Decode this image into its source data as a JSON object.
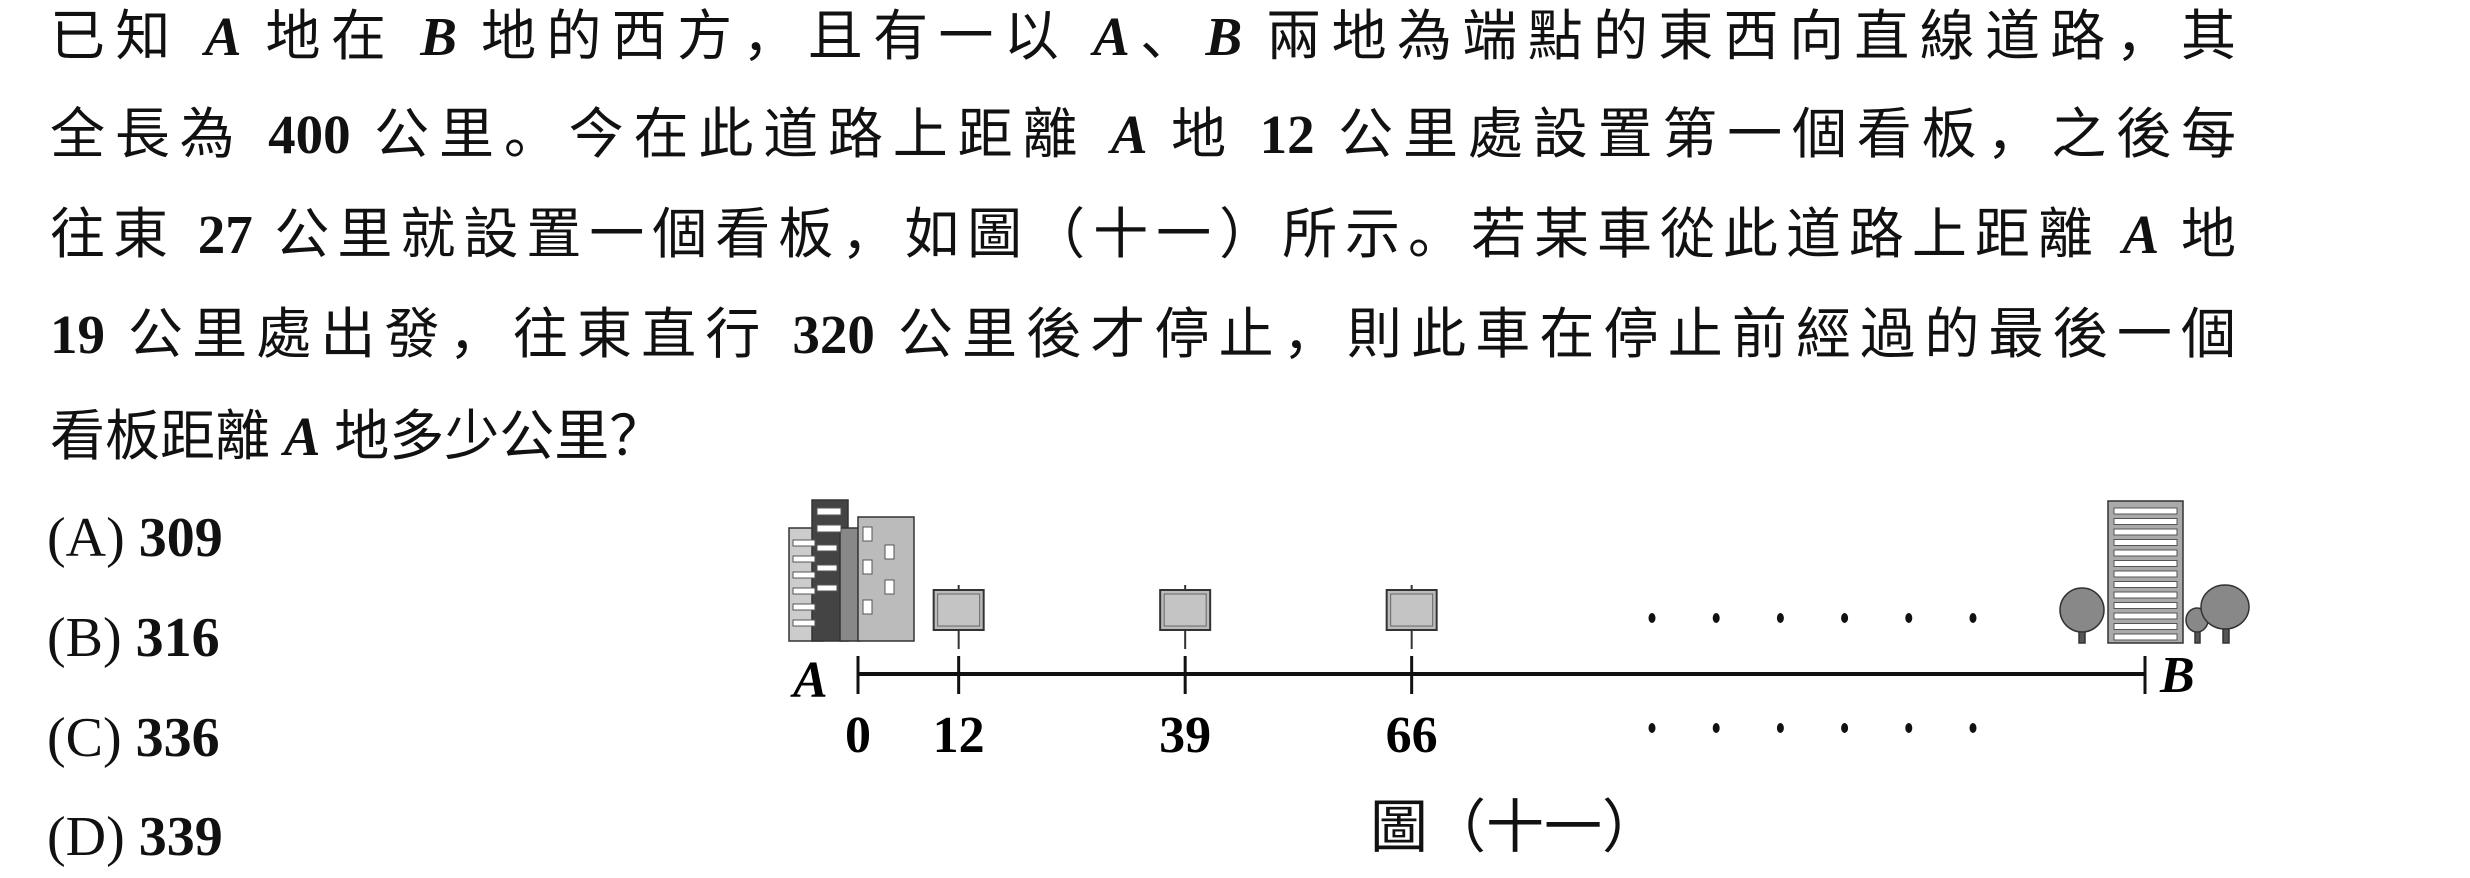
{
  "question": {
    "lines": [
      [
        "已知 ",
        "A",
        " 地在 ",
        "B",
        " 地的西方，且有一以 ",
        "A",
        "、",
        "B",
        " 兩地為端點的東西向直線道路，其"
      ],
      [
        "全長為 ",
        "400",
        " 公里。今在此道路上距離 ",
        "A",
        " 地 ",
        "12",
        " 公里處設置第一個看板，之後每"
      ],
      [
        "往東 ",
        "27",
        " 公里就設置一個看板，如圖（十一）所示。若某車從此道路上距離 ",
        "A",
        " 地"
      ],
      [
        "19",
        " 公里處出發，往東直行 ",
        "320",
        " 公里後才停止，則此車在停止前經過的最後一個"
      ],
      [
        "看板距離 ",
        "A",
        " 地多少公里？"
      ]
    ]
  },
  "options": [
    {
      "label": "(A)",
      "value": "309"
    },
    {
      "label": "(B)",
      "value": "316"
    },
    {
      "label": "(C)",
      "value": "336"
    },
    {
      "label": "(D)",
      "value": "339"
    }
  ],
  "figure": {
    "endpoint_a": "A",
    "endpoint_b": "B",
    "ticks": [
      "0",
      "12",
      "39",
      "66"
    ],
    "caption": "圖（十一）"
  }
}
